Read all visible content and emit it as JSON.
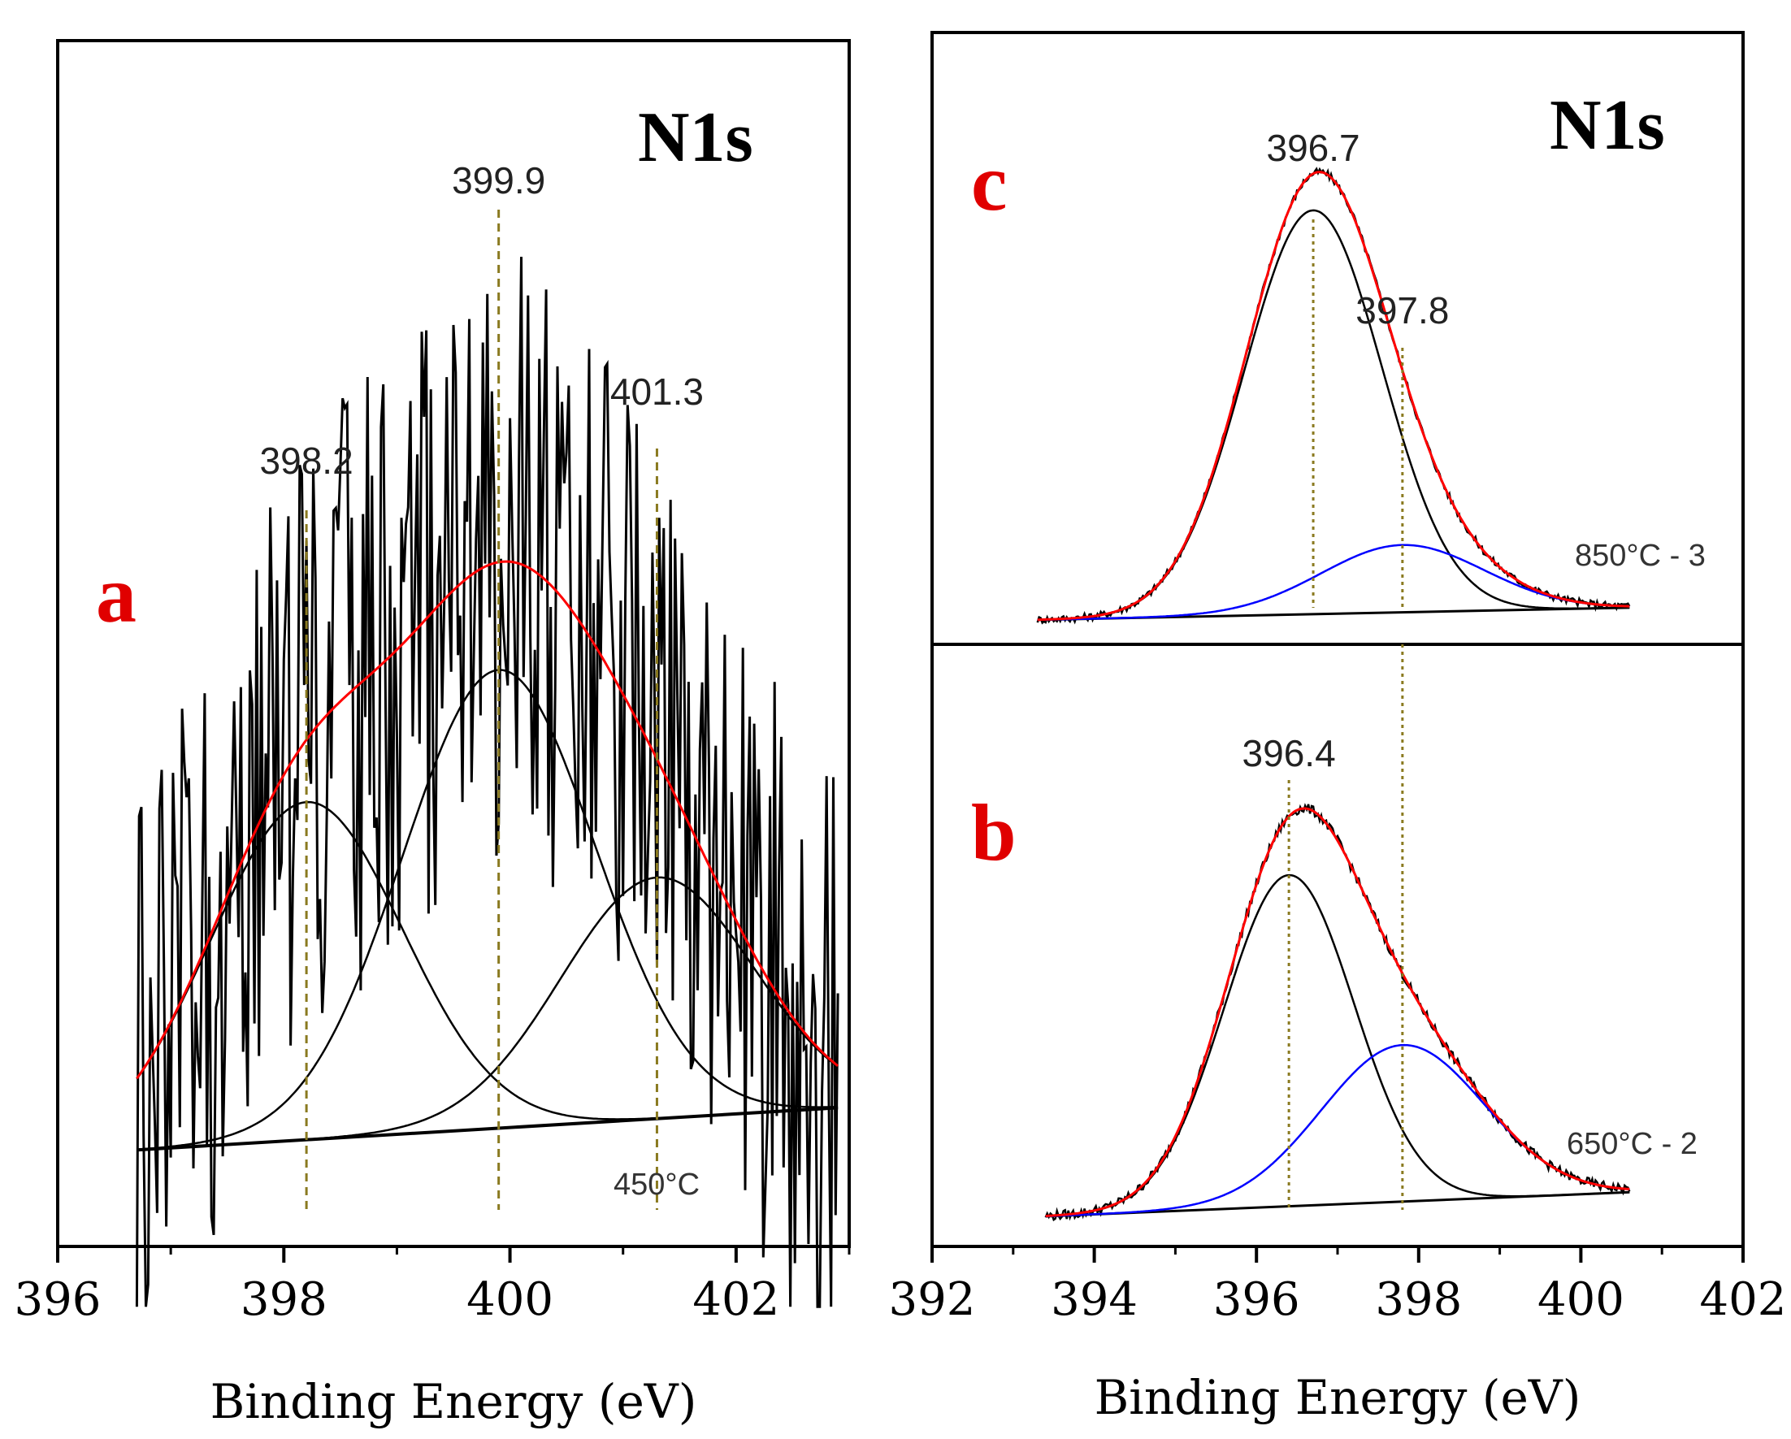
{
  "chart_data": [
    {
      "panel": "a",
      "type": "line",
      "title": "N1s",
      "panel_letter": "a",
      "temperature_label": "450°C",
      "xlabel": "Binding Energy (eV)",
      "xlim": [
        396,
        403
      ],
      "xticks": [
        396,
        398,
        400,
        402
      ],
      "ylim": [
        0,
        1
      ],
      "peak_markers": [
        {
          "x": 398.2,
          "label": "398.2"
        },
        {
          "x": 399.9,
          "label": "399.9"
        },
        {
          "x": 401.3,
          "label": "401.3"
        }
      ],
      "background": {
        "x": [
          396.7,
          402.9
        ],
        "y": [
          0.08,
          0.115
        ]
      },
      "components": [
        {
          "name": "component 398.2",
          "center": 398.2,
          "amplitude": 0.28,
          "sigma": 0.85,
          "color": "#000000"
        },
        {
          "name": "component 399.9",
          "center": 399.9,
          "amplitude": 0.38,
          "sigma": 0.85,
          "color": "#000000"
        },
        {
          "name": "component 401.3",
          "center": 401.3,
          "amplitude": 0.2,
          "sigma": 0.85,
          "color": "#000000"
        }
      ],
      "envelope_color": "#ff0000",
      "raw_data_color": "#000000"
    },
    {
      "panel": "c",
      "type": "line",
      "title": "N1s",
      "panel_letter": "c",
      "temperature_label": "850°C - 3",
      "xlim": [
        392,
        402
      ],
      "ylim": [
        0,
        1
      ],
      "peak_markers": [
        {
          "x": 396.7,
          "label": "396.7"
        },
        {
          "x": 397.8,
          "label": "397.8"
        }
      ],
      "background": {
        "x": [
          393.3,
          400.6
        ],
        "y": [
          0.04,
          0.06
        ]
      },
      "components": [
        {
          "name": "component 396.7",
          "center": 396.7,
          "amplitude": 0.66,
          "sigma": 0.85,
          "color": "#000000"
        },
        {
          "name": "component 397.8",
          "center": 397.8,
          "amplitude": 0.11,
          "sigma": 1.0,
          "color": "#0000ff"
        }
      ],
      "envelope_color": "#ff0000",
      "raw_data_color": "#000000"
    },
    {
      "panel": "b",
      "type": "line",
      "panel_letter": "b",
      "temperature_label": "650°C - 2",
      "xlabel": "Binding Energy (eV)",
      "xlim": [
        392,
        402
      ],
      "xticks": [
        392,
        394,
        396,
        398,
        400,
        402
      ],
      "ylim": [
        0,
        1
      ],
      "peak_markers": [
        {
          "x": 396.4,
          "label": "396.4"
        }
      ],
      "shared_marker_x": 397.8,
      "background": {
        "x": [
          393.4,
          400.6
        ],
        "y": [
          0.05,
          0.09
        ]
      },
      "components": [
        {
          "name": "component 396.4",
          "center": 396.4,
          "amplitude": 0.55,
          "sigma": 0.8,
          "color": "#000000"
        },
        {
          "name": "component 397.8",
          "center": 397.8,
          "amplitude": 0.26,
          "sigma": 1.0,
          "color": "#0000ff"
        }
      ],
      "envelope_color": "#ff0000",
      "raw_data_color": "#000000"
    }
  ]
}
